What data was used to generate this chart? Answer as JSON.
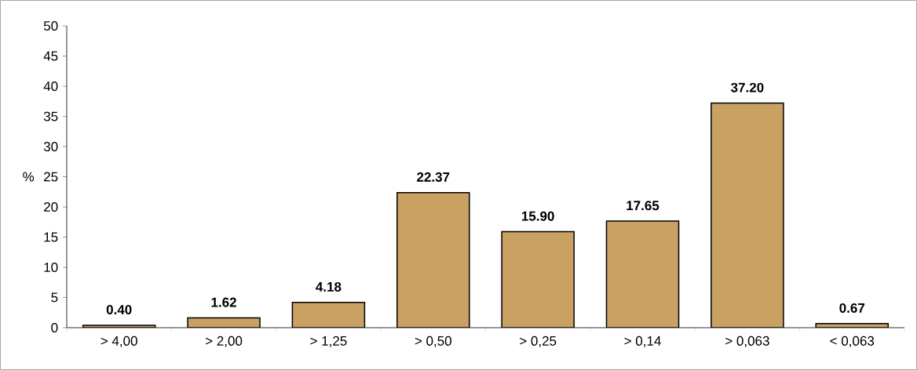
{
  "chart_data": {
    "type": "bar",
    "ylabel": "%",
    "categories": [
      "> 4,00",
      "> 2,00",
      "> 1,25",
      "> 0,50",
      "> 0,25",
      "> 0,14",
      "> 0,063",
      "< 0,063"
    ],
    "values": [
      0.4,
      1.62,
      4.18,
      22.37,
      15.9,
      17.65,
      37.2,
      0.67
    ],
    "value_labels": [
      "0.40",
      "1.62",
      "4.18",
      "22.37",
      "15.90",
      "17.65",
      "37.20",
      "0.67"
    ],
    "color": "#c9a263",
    "ylim": [
      0,
      50
    ],
    "yticks": [
      0,
      5,
      10,
      15,
      20,
      25,
      30,
      35,
      40,
      45,
      50
    ],
    "grid": false
  }
}
